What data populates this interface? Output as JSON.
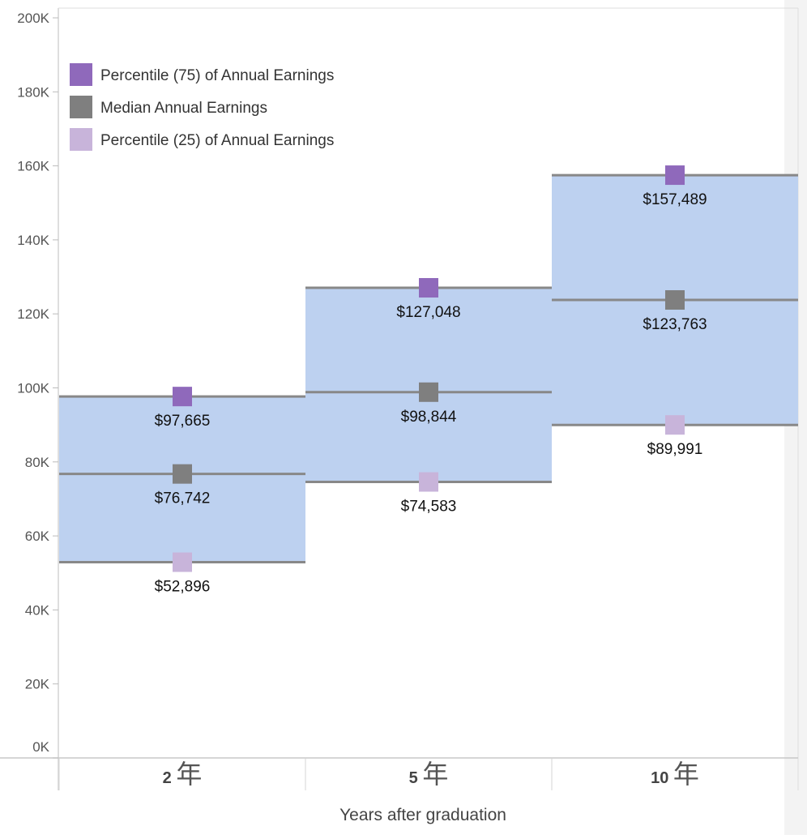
{
  "chart_data": {
    "type": "bar",
    "title": "",
    "xlabel": "Years after graduation",
    "ylabel": "",
    "ylim": [
      0,
      200000
    ],
    "y_ticks": [
      {
        "value": 0,
        "label": "0K"
      },
      {
        "value": 20000,
        "label": "20K"
      },
      {
        "value": 40000,
        "label": "40K"
      },
      {
        "value": 60000,
        "label": "60K"
      },
      {
        "value": 80000,
        "label": "80K"
      },
      {
        "value": 100000,
        "label": "100K"
      },
      {
        "value": 120000,
        "label": "120K"
      },
      {
        "value": 140000,
        "label": "140K"
      },
      {
        "value": 160000,
        "label": "160K"
      },
      {
        "value": 180000,
        "label": "180K"
      },
      {
        "value": 200000,
        "label": "200K"
      }
    ],
    "categories": [
      {
        "number": "2",
        "suffix": "年"
      },
      {
        "number": "5",
        "suffix": "年"
      },
      {
        "number": "10",
        "suffix": "年"
      }
    ],
    "series": [
      {
        "key": "p75",
        "name": "Percentile (75) of Annual Earnings",
        "color": "#8f69bb",
        "values": [
          97665,
          127048,
          157489
        ],
        "labels": [
          "$97,665",
          "$127,048",
          "$157,489"
        ]
      },
      {
        "key": "median",
        "name": "Median Annual Earnings",
        "color": "#7f7f7f",
        "values": [
          76742,
          98844,
          123763
        ],
        "labels": [
          "$76,742",
          "$98,844",
          "$123,763"
        ]
      },
      {
        "key": "p25",
        "name": "Percentile (25) of Annual Earnings",
        "color": "#c8b4da",
        "values": [
          52896,
          74583,
          89991
        ],
        "labels": [
          "$52,896",
          "$74,583",
          "$89,991"
        ]
      }
    ],
    "legend_position": "top-left",
    "band_color": "#bdd1f0",
    "line_color": "#888888",
    "grid": false
  }
}
